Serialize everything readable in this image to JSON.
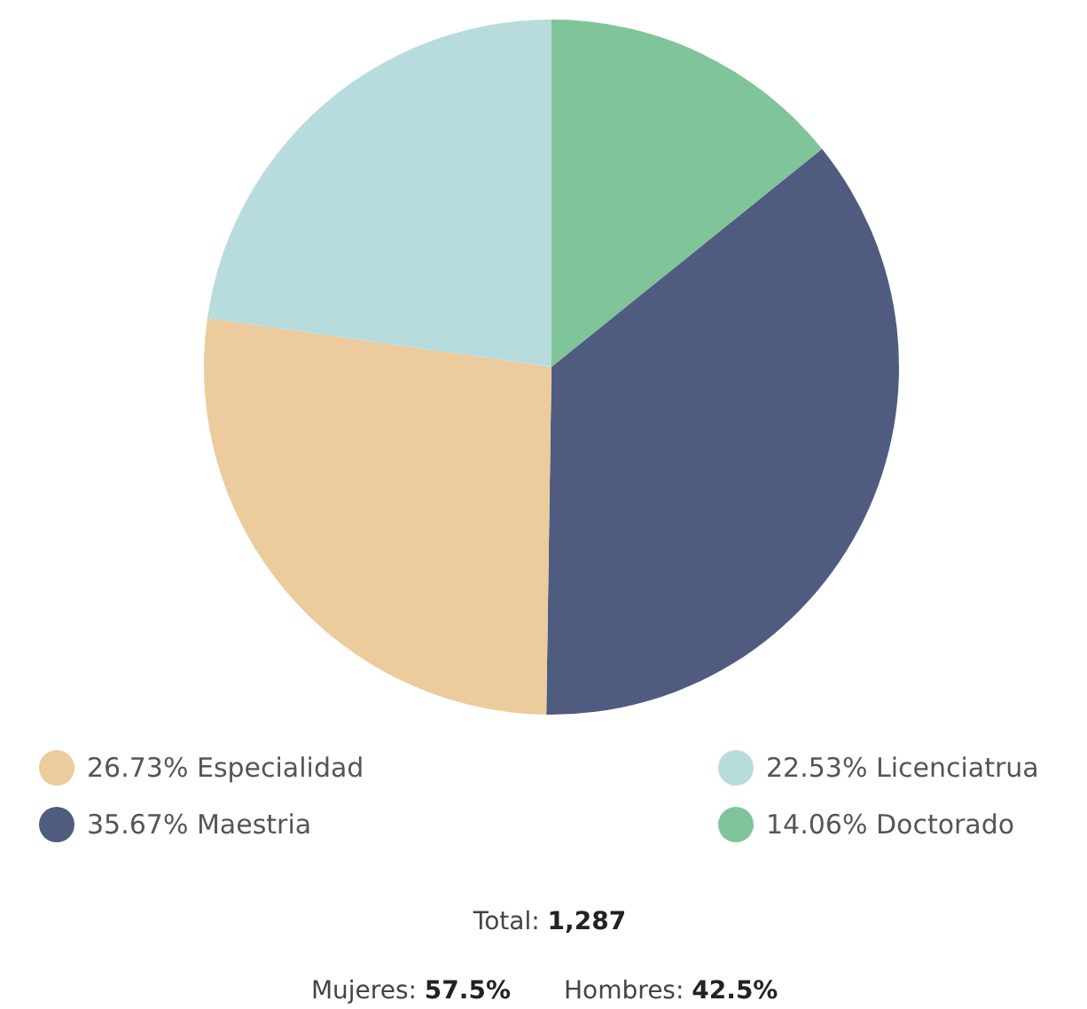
{
  "chart_data": {
    "type": "pie",
    "categories": [
      "Doctorado",
      "Maestria",
      "Especialidad",
      "Licenciatrua"
    ],
    "values": [
      14.06,
      35.67,
      26.73,
      22.53
    ],
    "colors": [
      "#80c49a",
      "#505b80",
      "#eccb9c",
      "#b8dcde"
    ],
    "value_labels": [
      "14.06%",
      "35.67%",
      "26.73%",
      "22.53%"
    ],
    "legend": "bottom",
    "annotations": [
      "Total: 1,287",
      "Mujeres: 57.5%",
      "Hombres: 42.5%"
    ]
  }
}
